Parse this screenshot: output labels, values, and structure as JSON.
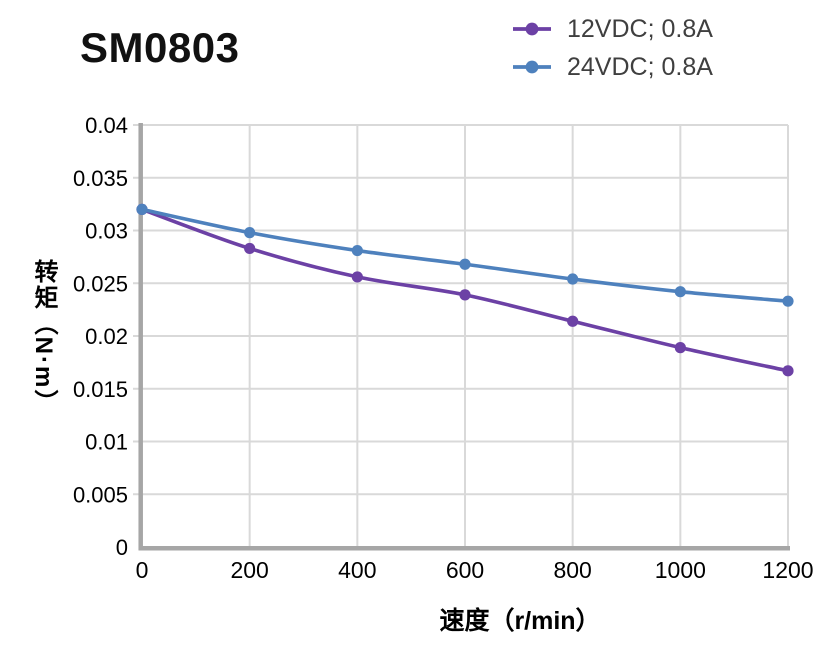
{
  "header": {
    "title": "SM0803"
  },
  "legend": {
    "items": [
      {
        "label": "12VDC; 0.8A",
        "color": "#6C41A5"
      },
      {
        "label": "24VDC; 0.8A",
        "color": "#4E81BD"
      }
    ]
  },
  "chart_data": {
    "type": "line",
    "title": "SM0803",
    "xlabel": "速度（r/min）",
    "ylabel": "转矩（N·m）",
    "x": [
      0,
      200,
      400,
      600,
      800,
      1000,
      1200
    ],
    "series": [
      {
        "name": "12VDC; 0.8A",
        "color": "#6C41A5",
        "values": [
          0.032,
          0.0283,
          0.0256,
          0.0239,
          0.0214,
          0.0189,
          0.0167
        ]
      },
      {
        "name": "24VDC; 0.8A",
        "color": "#4E81BD",
        "values": [
          0.032,
          0.0298,
          0.0281,
          0.0268,
          0.0254,
          0.0242,
          0.0233
        ]
      }
    ],
    "xlim": [
      0,
      1200
    ],
    "ylim": [
      0,
      0.04
    ],
    "xticks": [
      0,
      200,
      400,
      600,
      800,
      1000,
      1200
    ],
    "xtick_labels": [
      "0",
      "200",
      "400",
      "600",
      "800",
      "1000",
      "1200"
    ],
    "yticks": [
      0,
      0.005,
      0.01,
      0.015,
      0.02,
      0.025,
      0.03,
      0.035,
      0.04
    ],
    "ytick_labels": [
      "0",
      "0.005",
      "0.01",
      "0.015",
      "0.02",
      "0.025",
      "0.03",
      "0.035",
      "0.04"
    ],
    "grid": true,
    "legend_position": "top-right",
    "colors": {
      "grid": "#D9D9D9",
      "axis": "#A6A6A6",
      "tick_text": "#000000",
      "legend_text": "#3F3F3F",
      "title_text": "#111111"
    }
  }
}
